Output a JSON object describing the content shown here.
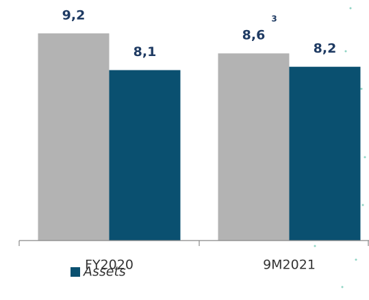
{
  "chart_data": {
    "type": "bar",
    "categories": [
      "FY2020",
      "9M2021"
    ],
    "series": [
      {
        "color": "#b3b3b3",
        "values": [
          9.2,
          8.6
        ],
        "value_labels": [
          "9,2",
          "8,6"
        ],
        "footnotes": [
          null,
          "3"
        ]
      },
      {
        "name": "Assets",
        "color": "#0a5070",
        "values": [
          8.1,
          8.2
        ],
        "value_labels": [
          "8,1",
          "8,2"
        ]
      }
    ],
    "ylim": [
      3,
      9.4
    ]
  }
}
